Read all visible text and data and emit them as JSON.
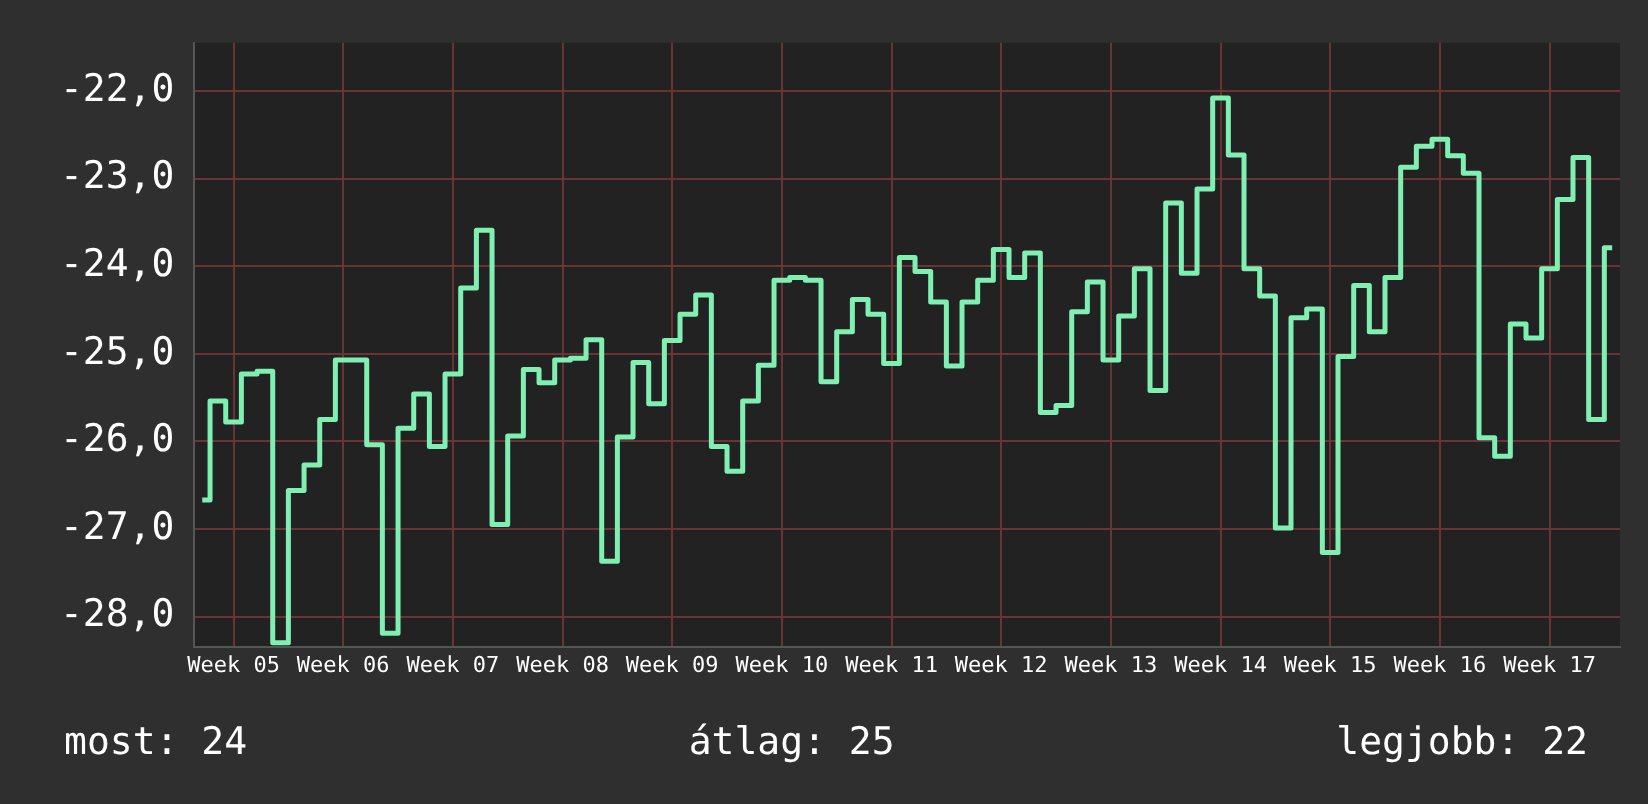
{
  "chart_data": {
    "type": "step",
    "color": "#7ff0b2",
    "categories": [
      null,
      null,
      "Week 05",
      null,
      null,
      null,
      null,
      null,
      null,
      "Week 06",
      null,
      null,
      null,
      null,
      null,
      null,
      "Week 07",
      null,
      null,
      null,
      null,
      null,
      null,
      "Week 08",
      null,
      null,
      null,
      null,
      null,
      null,
      "Week 09",
      null,
      null,
      null,
      null,
      null,
      null,
      "Week 10",
      null,
      null,
      null,
      null,
      null,
      null,
      "Week 11",
      null,
      null,
      null,
      null,
      null,
      null,
      "Week 12",
      null,
      null,
      null,
      null,
      null,
      null,
      "Week 13",
      null,
      null,
      null,
      null,
      null,
      null,
      "Week 14",
      null,
      null,
      null,
      null,
      null,
      null,
      "Week 15",
      null,
      null,
      null,
      null,
      null,
      null,
      "Week 16",
      null,
      null,
      null,
      null,
      null,
      null,
      "Week 17",
      null,
      null,
      null,
      null
    ],
    "values": [
      -26.67,
      -25.54,
      -25.78,
      -25.23,
      -25.2,
      -28.3,
      -26.56,
      -26.27,
      -25.75,
      -25.07,
      -25.07,
      -26.04,
      -28.19,
      -25.85,
      -25.46,
      -26.06,
      -25.23,
      -24.25,
      -23.59,
      -26.95,
      -25.94,
      -25.18,
      -25.33,
      -25.07,
      -25.05,
      -24.84,
      -27.37,
      -25.95,
      -25.1,
      -25.57,
      -24.85,
      -24.55,
      -24.33,
      -26.06,
      -26.34,
      -25.54,
      -25.13,
      -24.16,
      -24.13,
      -24.16,
      -25.32,
      -24.75,
      -24.38,
      -24.55,
      -25.11,
      -23.9,
      -24.06,
      -24.41,
      -25.14,
      -24.41,
      -24.16,
      -23.81,
      -24.13,
      -23.85,
      -25.67,
      -25.59,
      -24.52,
      -24.18,
      -25.07,
      -24.57,
      -24.03,
      -25.42,
      -23.28,
      -24.08,
      -23.12,
      -22.08,
      -22.73,
      -24.03,
      -24.34,
      -26.99,
      -24.59,
      -24.49,
      -27.27,
      -25.03,
      -24.22,
      -24.75,
      -24.13,
      -22.87,
      -22.63,
      -22.55,
      -22.74,
      -22.94,
      -25.96,
      -26.17,
      -24.66,
      -24.82,
      -24.03,
      -23.24,
      -22.76,
      -25.75,
      -23.79
    ],
    "ylim": [
      -28.35,
      -21.45
    ],
    "yticks": [
      {
        "value": -28,
        "label": "-28,0"
      },
      {
        "value": -27,
        "label": "-27,0"
      },
      {
        "value": -26,
        "label": "-26,0"
      },
      {
        "value": -25,
        "label": "-25,0"
      },
      {
        "value": -24,
        "label": "-24,0"
      },
      {
        "value": -23,
        "label": "-23,0"
      },
      {
        "value": -22,
        "label": "-22,0"
      }
    ],
    "grid": true,
    "legend": false,
    "marker": "none",
    "line_style": "solid",
    "annotations": [
      "most: 24",
      "átlag: 25",
      "legjobb: 22"
    ]
  }
}
